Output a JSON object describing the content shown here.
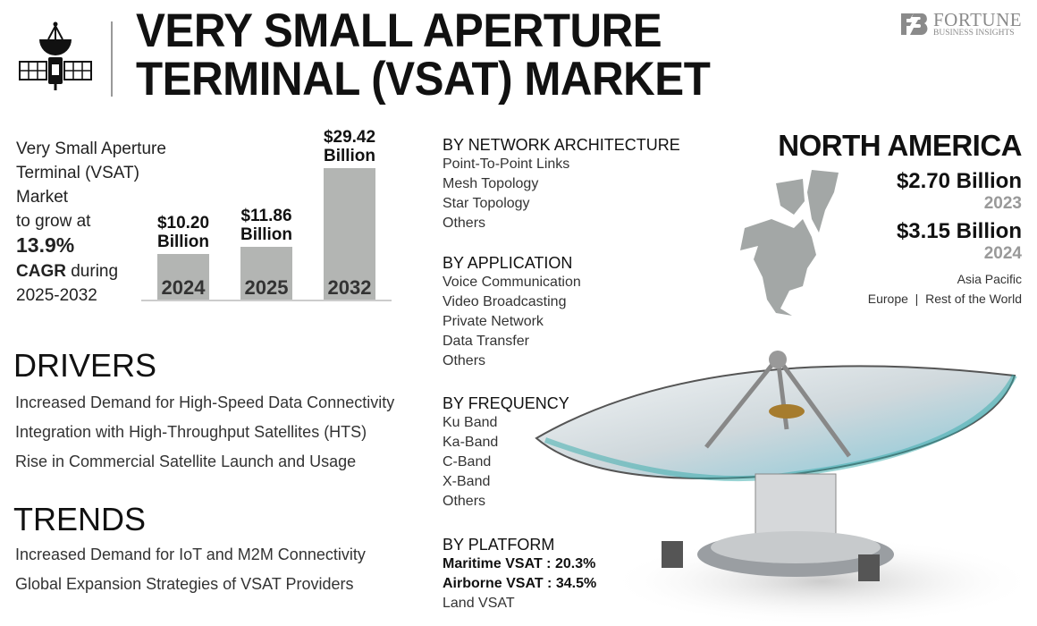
{
  "header": {
    "title_line1": "VERY SMALL APERTURE",
    "title_line2": "TERMINAL (VSAT) MARKET",
    "logo_line1": "FORTUNE",
    "logo_line2": "BUSINESS INSIGHTS"
  },
  "intro": {
    "line1": "Very Small Aperture",
    "line2": "Terminal (VSAT)",
    "line3": "Market",
    "line4": "to grow at",
    "cagr": "13.9%",
    "cagr_label": "CAGR",
    "during": " during",
    "period": "2025-2032"
  },
  "chart_data": {
    "type": "bar",
    "categories": [
      "2024",
      "2025",
      "2032"
    ],
    "values": [
      10.2,
      11.86,
      29.42
    ],
    "data_labels": [
      "$10.20",
      "$11.86",
      "$29.42"
    ],
    "unit_label": "Billion",
    "ylim": [
      0,
      30
    ],
    "color": "#b3b5b3"
  },
  "segments": [
    {
      "title": "BY NETWORK ARCHITECTURE",
      "items": [
        "Point-To-Point Links",
        "Mesh Topology",
        "Star Topology",
        "Others"
      ]
    },
    {
      "title": "BY APPLICATION",
      "items": [
        "Voice Communication",
        "Video Broadcasting",
        "Private Network",
        "Data Transfer",
        "Others"
      ]
    },
    {
      "title": "BY FREQUENCY",
      "items": [
        "Ku Band",
        "Ka-Band",
        "C-Band",
        "X-Band",
        "Others"
      ]
    },
    {
      "title": "BY PLATFORM",
      "items": [
        "Maritime VSAT : 20.3%",
        "Airborne VSAT : 34.5%",
        "Land VSAT"
      ]
    }
  ],
  "drivers": {
    "title": "DRIVERS",
    "items": [
      "Increased Demand for High-Speed Data Connectivity",
      "Integration with High-Throughput Satellites (HTS)",
      "Rise in Commercial Satellite Launch and Usage"
    ]
  },
  "trends": {
    "title": "TRENDS",
    "items": [
      "Increased Demand for IoT and M2M Connectivity",
      "Global Expansion Strategies of VSAT Providers"
    ]
  },
  "region": {
    "title": "NORTH AMERICA",
    "value1": "$2.70 Billion",
    "year1": "2023",
    "value2": "$3.15 Billion",
    "year2": "2024",
    "other1": "Asia Pacific",
    "other2": "Europe  |  Rest of the World"
  }
}
